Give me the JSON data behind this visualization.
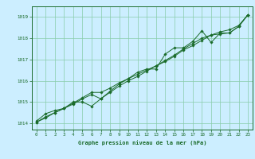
{
  "title": "Graphe pression niveau de la mer (hPa)",
  "bg_color": "#cceeff",
  "grid_color": "#88ccaa",
  "line_color": "#1a6b2a",
  "marker_color": "#1a6b2a",
  "xlim": [
    -0.5,
    23.5
  ],
  "ylim": [
    1013.7,
    1019.5
  ],
  "yticks": [
    1014,
    1015,
    1016,
    1017,
    1018,
    1019
  ],
  "xticks": [
    0,
    1,
    2,
    3,
    4,
    5,
    6,
    7,
    8,
    9,
    10,
    11,
    12,
    13,
    14,
    15,
    16,
    17,
    18,
    19,
    20,
    21,
    22,
    23
  ],
  "series1": [
    1014.1,
    1014.45,
    1014.6,
    1014.7,
    1015.0,
    1015.0,
    1014.8,
    1015.15,
    1015.5,
    1015.85,
    1016.1,
    1016.4,
    1016.55,
    1016.55,
    1017.25,
    1017.55,
    1017.55,
    1017.85,
    1018.35,
    1017.8,
    1018.25,
    1018.25,
    1018.55,
    1019.1
  ],
  "series2": [
    1014.05,
    1014.25,
    1014.5,
    1014.7,
    1014.9,
    1015.15,
    1015.35,
    1015.15,
    1015.45,
    1015.75,
    1016.0,
    1016.2,
    1016.45,
    1016.7,
    1016.9,
    1017.15,
    1017.45,
    1017.65,
    1017.9,
    1018.15,
    1018.2,
    1018.25,
    1018.55,
    1019.1
  ],
  "series3": [
    1014.05,
    1014.3,
    1014.5,
    1014.7,
    1014.95,
    1015.2,
    1015.45,
    1015.45,
    1015.65,
    1015.9,
    1016.1,
    1016.3,
    1016.5,
    1016.7,
    1016.95,
    1017.2,
    1017.5,
    1017.75,
    1018.0,
    1018.15,
    1018.3,
    1018.4,
    1018.6,
    1019.1
  ]
}
